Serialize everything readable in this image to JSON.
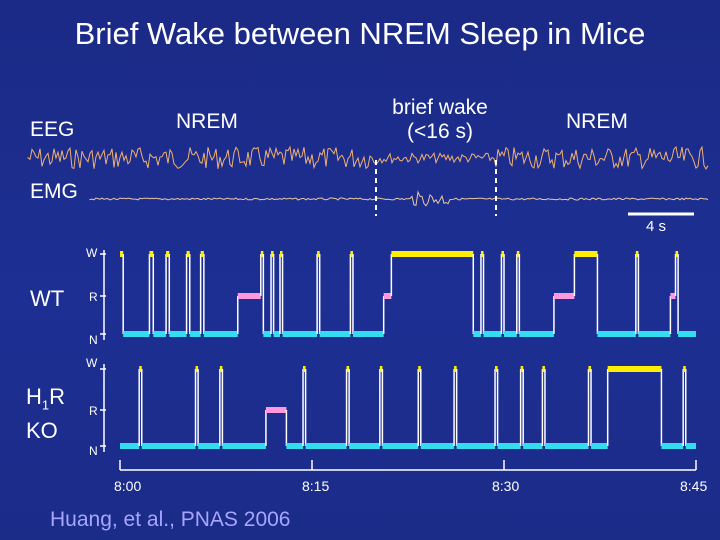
{
  "slide": {
    "title": "Brief Wake between NREM Sleep in Mice",
    "citation": "Huang, et al., PNAS 2006"
  },
  "traces": {
    "eeg_label": "EEG",
    "emg_label": "EMG",
    "annot_nrem_left": "NREM",
    "annot_wake_line1": "brief wake",
    "annot_wake_line2": "(<16 s)",
    "annot_nrem_right": "NREM",
    "scale_bar_label": "4 s"
  },
  "colors": {
    "wake": "#ffee00",
    "rem": "#ff99dd",
    "nrem": "#33ddee",
    "eeg": "#f0b070",
    "emg": "#e8c8a0",
    "background": "#1c2d8c"
  },
  "chart_data": {
    "type": "hypnogram",
    "xaxis": {
      "ticks": [
        "8:00",
        "8:15",
        "8:30",
        "8:45"
      ],
      "range_min": [
        0,
        45
      ]
    },
    "states": [
      "W",
      "R",
      "N"
    ],
    "panels": [
      {
        "name": "WT",
        "segments": [
          {
            "start": 0.0,
            "end": 0.25,
            "state": "W"
          },
          {
            "start": 0.25,
            "end": 2.3,
            "state": "N"
          },
          {
            "start": 2.3,
            "end": 2.6,
            "state": "W"
          },
          {
            "start": 2.6,
            "end": 3.6,
            "state": "N"
          },
          {
            "start": 3.6,
            "end": 3.85,
            "state": "W"
          },
          {
            "start": 3.85,
            "end": 5.2,
            "state": "N"
          },
          {
            "start": 5.2,
            "end": 5.45,
            "state": "W"
          },
          {
            "start": 5.45,
            "end": 6.3,
            "state": "N"
          },
          {
            "start": 6.3,
            "end": 6.55,
            "state": "W"
          },
          {
            "start": 6.55,
            "end": 9.2,
            "state": "N"
          },
          {
            "start": 9.2,
            "end": 11.0,
            "state": "R"
          },
          {
            "start": 11.0,
            "end": 11.2,
            "state": "W"
          },
          {
            "start": 11.2,
            "end": 11.8,
            "state": "N"
          },
          {
            "start": 11.8,
            "end": 12.0,
            "state": "W"
          },
          {
            "start": 12.0,
            "end": 12.5,
            "state": "N"
          },
          {
            "start": 12.5,
            "end": 12.7,
            "state": "W"
          },
          {
            "start": 12.7,
            "end": 15.4,
            "state": "N"
          },
          {
            "start": 15.4,
            "end": 15.6,
            "state": "W"
          },
          {
            "start": 15.6,
            "end": 18.0,
            "state": "N"
          },
          {
            "start": 18.0,
            "end": 18.2,
            "state": "W"
          },
          {
            "start": 18.2,
            "end": 20.6,
            "state": "N"
          },
          {
            "start": 20.6,
            "end": 21.2,
            "state": "R"
          },
          {
            "start": 21.2,
            "end": 27.6,
            "state": "W"
          },
          {
            "start": 27.6,
            "end": 28.2,
            "state": "N"
          },
          {
            "start": 28.2,
            "end": 28.4,
            "state": "W"
          },
          {
            "start": 28.4,
            "end": 29.8,
            "state": "N"
          },
          {
            "start": 29.8,
            "end": 30.0,
            "state": "W"
          },
          {
            "start": 30.0,
            "end": 31.0,
            "state": "N"
          },
          {
            "start": 31.0,
            "end": 31.2,
            "state": "W"
          },
          {
            "start": 31.2,
            "end": 33.9,
            "state": "N"
          },
          {
            "start": 33.9,
            "end": 35.5,
            "state": "R"
          },
          {
            "start": 35.5,
            "end": 37.3,
            "state": "W"
          },
          {
            "start": 37.3,
            "end": 40.3,
            "state": "N"
          },
          {
            "start": 40.3,
            "end": 40.5,
            "state": "W"
          },
          {
            "start": 40.5,
            "end": 43.0,
            "state": "N"
          },
          {
            "start": 43.0,
            "end": 43.4,
            "state": "R"
          },
          {
            "start": 43.4,
            "end": 43.6,
            "state": "W"
          },
          {
            "start": 43.6,
            "end": 45.0,
            "state": "N"
          }
        ]
      },
      {
        "name": "H1R KO",
        "segments": [
          {
            "start": 0.0,
            "end": 1.5,
            "state": "N"
          },
          {
            "start": 1.5,
            "end": 1.7,
            "state": "W"
          },
          {
            "start": 1.7,
            "end": 5.9,
            "state": "N"
          },
          {
            "start": 5.9,
            "end": 6.1,
            "state": "W"
          },
          {
            "start": 6.1,
            "end": 7.8,
            "state": "N"
          },
          {
            "start": 7.8,
            "end": 8.0,
            "state": "W"
          },
          {
            "start": 8.0,
            "end": 11.4,
            "state": "N"
          },
          {
            "start": 11.4,
            "end": 13.0,
            "state": "R"
          },
          {
            "start": 13.0,
            "end": 14.3,
            "state": "N"
          },
          {
            "start": 14.3,
            "end": 14.5,
            "state": "W"
          },
          {
            "start": 14.5,
            "end": 17.7,
            "state": "N"
          },
          {
            "start": 17.7,
            "end": 17.9,
            "state": "W"
          },
          {
            "start": 17.9,
            "end": 20.3,
            "state": "N"
          },
          {
            "start": 20.3,
            "end": 20.5,
            "state": "W"
          },
          {
            "start": 20.5,
            "end": 23.3,
            "state": "N"
          },
          {
            "start": 23.3,
            "end": 23.5,
            "state": "W"
          },
          {
            "start": 23.5,
            "end": 26.1,
            "state": "N"
          },
          {
            "start": 26.1,
            "end": 26.3,
            "state": "W"
          },
          {
            "start": 26.3,
            "end": 29.3,
            "state": "N"
          },
          {
            "start": 29.3,
            "end": 29.5,
            "state": "W"
          },
          {
            "start": 29.5,
            "end": 31.3,
            "state": "N"
          },
          {
            "start": 31.3,
            "end": 31.5,
            "state": "W"
          },
          {
            "start": 31.5,
            "end": 33.0,
            "state": "N"
          },
          {
            "start": 33.0,
            "end": 33.2,
            "state": "W"
          },
          {
            "start": 33.2,
            "end": 36.6,
            "state": "N"
          },
          {
            "start": 36.6,
            "end": 36.8,
            "state": "W"
          },
          {
            "start": 36.8,
            "end": 38.1,
            "state": "N"
          },
          {
            "start": 38.1,
            "end": 42.3,
            "state": "W"
          },
          {
            "start": 42.3,
            "end": 44.0,
            "state": "N"
          },
          {
            "start": 44.0,
            "end": 44.2,
            "state": "W"
          },
          {
            "start": 44.2,
            "end": 45.0,
            "state": "N"
          }
        ]
      }
    ]
  }
}
